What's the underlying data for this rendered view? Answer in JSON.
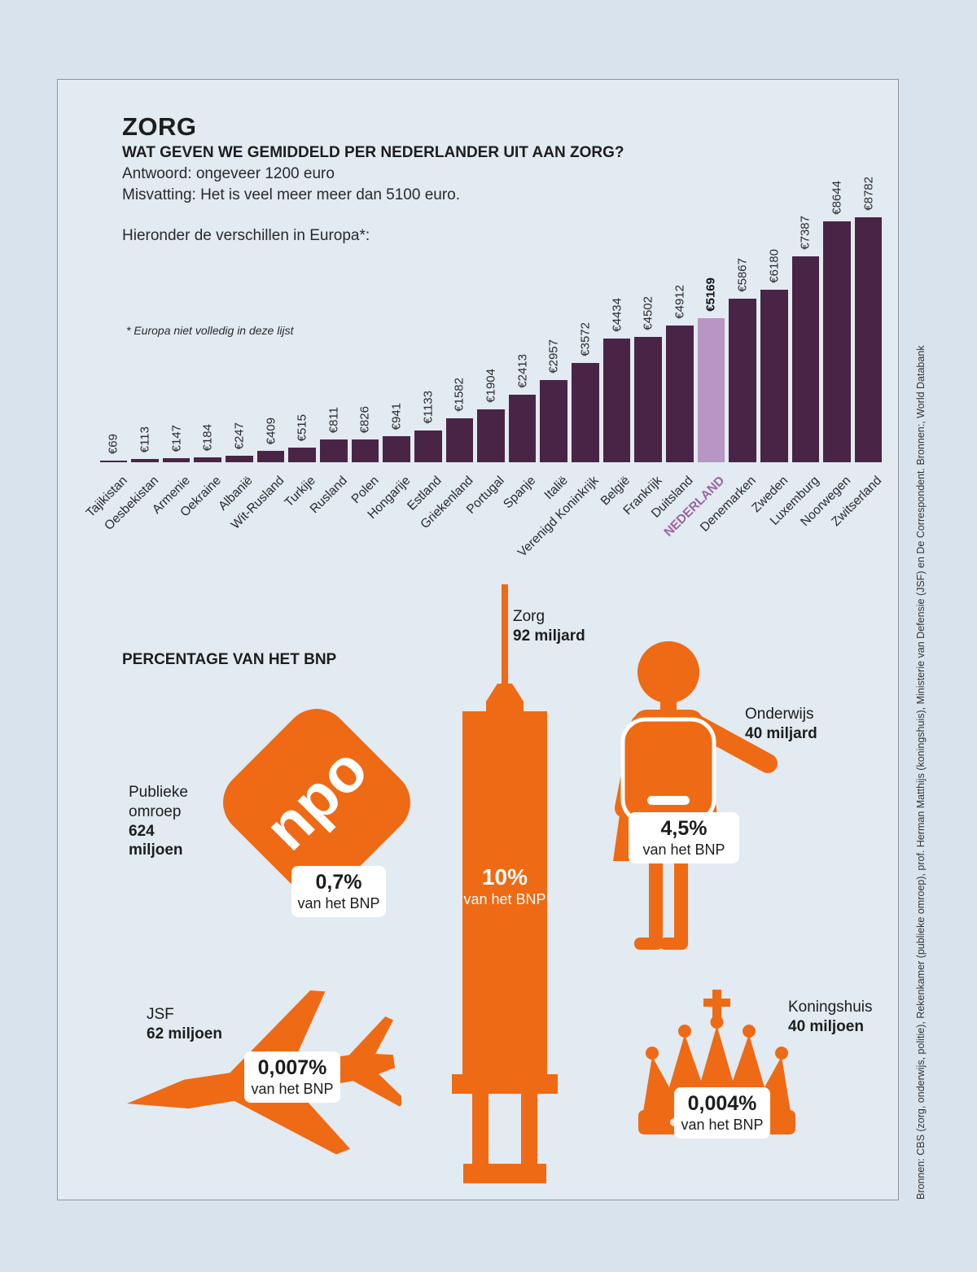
{
  "colors": {
    "background": "#d9e3ed",
    "bar": "#4a2447",
    "bar_highlight": "#b795c4",
    "highlight_label": "#9a66a4",
    "orange": "#ef6a14"
  },
  "header": {
    "title": "ZORG",
    "question": "WAT GEVEN WE GEMIDDELD PER NEDERLANDER UIT AAN ZORG?",
    "answer": "Antwoord: ongeveer 1200 euro",
    "misconception": "Misvatting:  Het is veel meer meer dan 5100 euro.",
    "intro": "Hieronder de verschillen in Europa*:",
    "footnote": "* Europa niet volledig in deze lijst"
  },
  "chart_data": {
    "type": "bar",
    "title": "WAT GEVEN WE GEMIDDELD PER NEDERLANDER UIT AAN ZORG?",
    "currency_prefix": "€",
    "categories": [
      "Tajikistan",
      "Oesbekistan",
      "Armenie",
      "Oekraine",
      "Albanië",
      "Wit-Rusland",
      "Turkije",
      "Rusland",
      "Polen",
      "Hongarije",
      "Estland",
      "Griekenland",
      "Portugal",
      "Spanje",
      "Italië",
      "Verenigd Koninkrijk",
      "België",
      "Frankrijk",
      "Duitsland",
      "NEDERLAND",
      "Denemarken",
      "Zweden",
      "Luxemburg",
      "Noorwegen",
      "Zwitserland"
    ],
    "values": [
      69,
      113,
      147,
      184,
      247,
      409,
      515,
      811,
      826,
      941,
      1133,
      1582,
      1904,
      2413,
      2957,
      3572,
      4434,
      4502,
      4912,
      5169,
      5867,
      6180,
      7387,
      8644,
      8782
    ],
    "highlight_index": 19,
    "highlight_category": "NEDERLAND",
    "ylim": [
      0,
      8782
    ],
    "grid": false,
    "legend": false
  },
  "bnp_section": {
    "title": "PERCENTAGE VAN HET BNP",
    "npo_logo_text": "npo",
    "items": [
      {
        "name": "Publieke omroep",
        "amount": "624 miljoen",
        "pct": "0,7%",
        "sub": "van het BNP",
        "icon": "npo-logo"
      },
      {
        "name": "Zorg",
        "amount": "92 miljard",
        "pct": "10%",
        "sub": "van het BNP",
        "icon": "syringe"
      },
      {
        "name": "Onderwijs",
        "amount": "40 miljard",
        "pct": "4,5%",
        "sub": "van het BNP",
        "icon": "student-girl"
      },
      {
        "name": "JSF",
        "amount": "62 miljoen",
        "pct": "0,007%",
        "sub": "van het BNP",
        "icon": "fighter-jet"
      },
      {
        "name": "Koningshuis",
        "amount": "40 miljoen",
        "pct": "0,004%",
        "sub": "van het BNP",
        "icon": "crown"
      }
    ]
  },
  "source": {
    "text": "Bronnen: CBS (zorg, onderwijs, politie), Rekenkamer (publieke omroep), prof. Herman Matthijs (koningshuis), Ministerie van Defensie (JSF) en De Correspondent. Bronnen:, World Databank"
  }
}
